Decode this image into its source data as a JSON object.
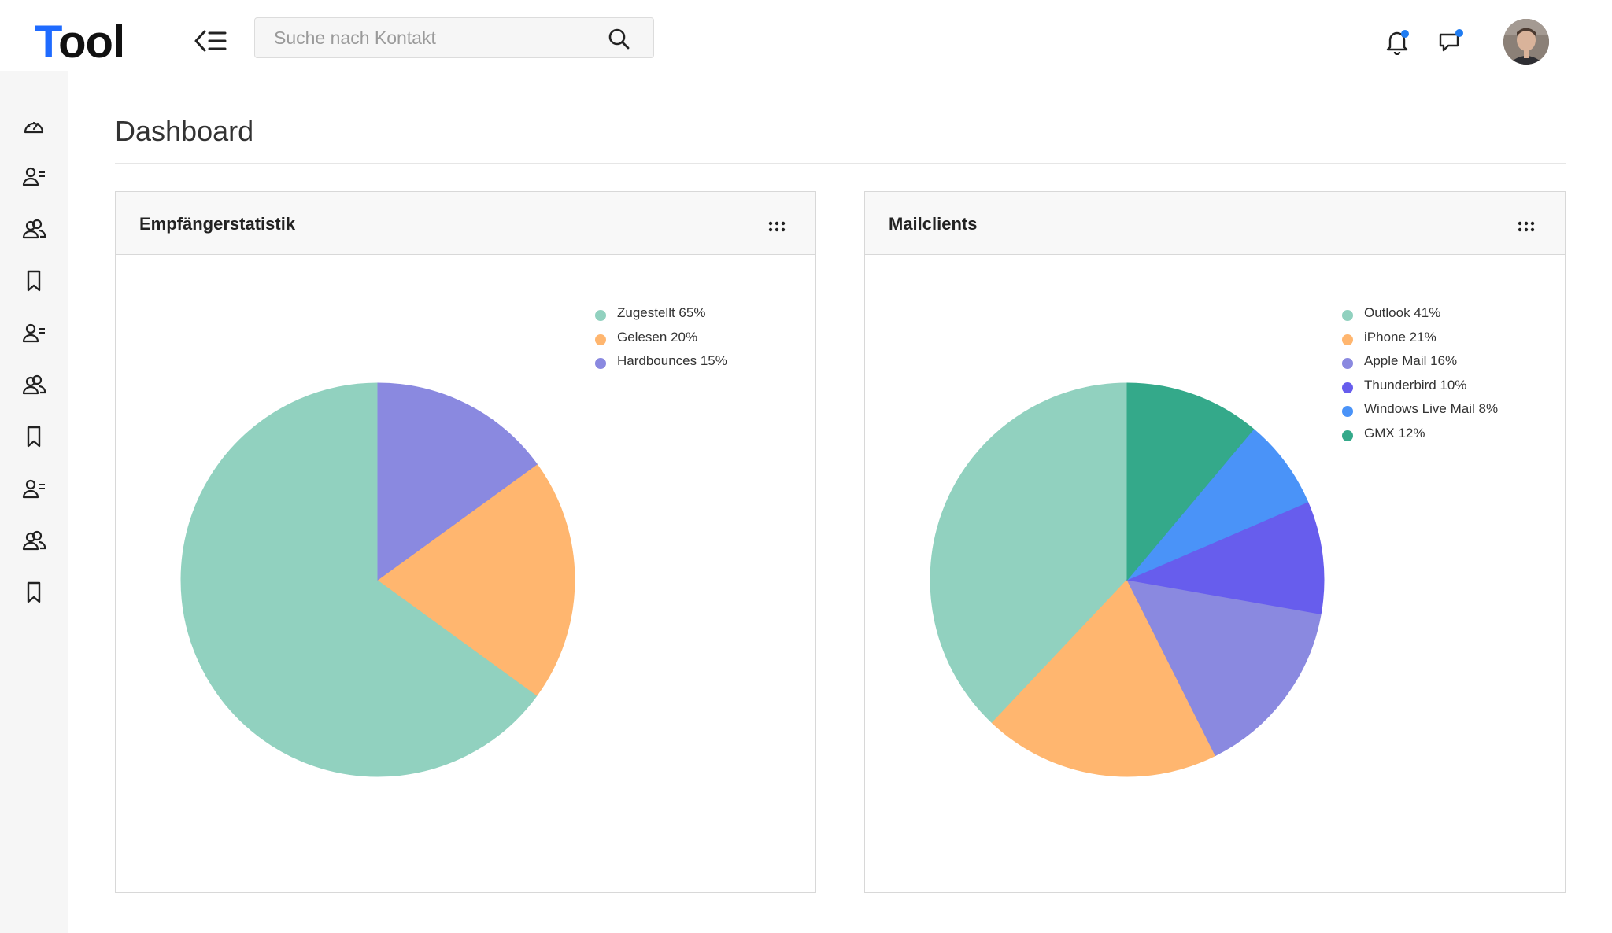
{
  "app": {
    "logo_first": "T",
    "logo_rest": "ool"
  },
  "header": {
    "search_placeholder": "Suche nach Kontakt",
    "icons": [
      "menu-collapse-icon",
      "search-icon",
      "bell-icon",
      "chat-icon",
      "avatar"
    ],
    "notification_dot_color": "#1f7cf2"
  },
  "sidebar": {
    "items": [
      {
        "icon": "dashboard-gauge-icon"
      },
      {
        "icon": "contact-list-icon"
      },
      {
        "icon": "users-group-icon"
      },
      {
        "icon": "bookmark-icon"
      },
      {
        "icon": "contact-list-icon"
      },
      {
        "icon": "users-group-icon"
      },
      {
        "icon": "bookmark-icon"
      },
      {
        "icon": "contact-list-icon"
      },
      {
        "icon": "users-group-icon"
      },
      {
        "icon": "bookmark-icon"
      }
    ]
  },
  "main": {
    "title": "Dashboard"
  },
  "chart_data": [
    {
      "type": "pie",
      "title": "Empfängerstatistik",
      "legend_position": "top-right",
      "slices": [
        {
          "label": "Zugestellt 65%",
          "value": 65,
          "color": "#91d1bf"
        },
        {
          "label": "Gelesen 20%",
          "value": 20,
          "color": "#ffb66f"
        },
        {
          "label": "Hardbounces 15%",
          "value": 15,
          "color": "#8a89e0"
        }
      ]
    },
    {
      "type": "pie",
      "title": "Mailclients",
      "legend_position": "top-right",
      "slices": [
        {
          "label": "Outlook 41%",
          "value": 41,
          "color": "#91d1bf"
        },
        {
          "label": "iPhone 21%",
          "value": 21,
          "color": "#ffb66f"
        },
        {
          "label": "Apple Mail 16%",
          "value": 16,
          "color": "#8a89e0"
        },
        {
          "label": "Thunderbird 10%",
          "value": 10,
          "color": "#675ded"
        },
        {
          "label": "Windows Live Mail 8%",
          "value": 8,
          "color": "#4a93f8"
        },
        {
          "label": "GMX 12%",
          "value": 12,
          "color": "#34a98a"
        }
      ]
    }
  ]
}
